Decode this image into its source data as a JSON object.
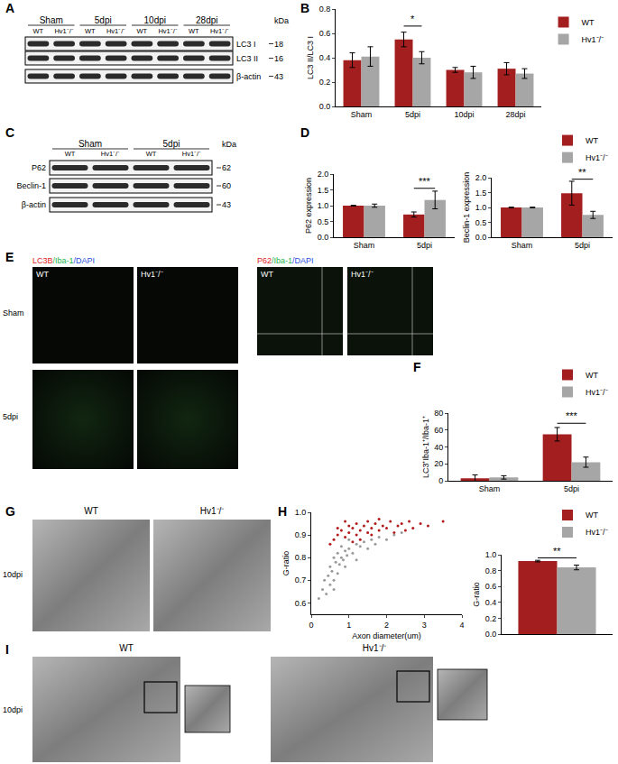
{
  "chart_data": [
    {
      "type": "bar",
      "y_label": "LC3 II/LC3 I",
      "categories": [
        "Sham",
        "5dpi",
        "10dpi",
        "28dpi"
      ],
      "series": [
        {
          "name": "WT",
          "color": "#a31f1f",
          "values": [
            0.38,
            0.55,
            0.3,
            0.31
          ],
          "errors": [
            0.06,
            0.06,
            0.02,
            0.05
          ]
        },
        {
          "name": "Hv1⁻/⁻",
          "color": "#a6a6a6",
          "values": [
            0.41,
            0.4,
            0.28,
            0.27
          ],
          "errors": [
            0.08,
            0.05,
            0.05,
            0.04
          ]
        }
      ],
      "ylim": [
        0,
        0.8
      ],
      "yticks": [
        {
          "value": 0,
          "label": "0.0"
        },
        0.2,
        0.4,
        0.6,
        0.8
      ],
      "grid": false,
      "legend": "right",
      "annotations": [
        {
          "text": "*",
          "category": "5dpi",
          "y": 0.66
        }
      ]
    },
    {
      "type": "bar",
      "y_label": "P62 expression",
      "categories": [
        "Sham",
        "5dpi"
      ],
      "series": [
        {
          "name": "WT",
          "color": "#a31f1f",
          "values": [
            1.0,
            0.72
          ],
          "errors": [
            0.01,
            0.08
          ]
        },
        {
          "name": "Hv1⁻/⁻",
          "color": "#a6a6a6",
          "values": [
            1.0,
            1.18
          ],
          "errors": [
            0.05,
            0.28
          ]
        }
      ],
      "ylim": [
        0,
        2.0
      ],
      "yticks": [
        {
          "value": 0,
          "label": "0.0"
        },
        0.5,
        {
          "value": 1,
          "label": "1.0"
        },
        1.5,
        {
          "value": 2,
          "label": "2.0"
        }
      ],
      "grid": false,
      "annotations": [
        {
          "text": "***",
          "category": "5dpi",
          "y": 1.55
        }
      ]
    },
    {
      "type": "bar",
      "y_label": "Beclin-1 expression",
      "categories": [
        "Sham",
        "5dpi"
      ],
      "series": [
        {
          "name": "WT",
          "color": "#a31f1f",
          "values": [
            1.0,
            1.48
          ],
          "errors": [
            0.01,
            0.4
          ]
        },
        {
          "name": "Hv1⁻/⁻",
          "color": "#a6a6a6",
          "values": [
            1.0,
            0.75
          ],
          "errors": [
            0.01,
            0.12
          ]
        }
      ],
      "ylim": [
        0,
        2.0
      ],
      "yticks": [
        {
          "value": 0,
          "label": "0.0"
        },
        0.5,
        {
          "value": 1,
          "label": "1.0"
        },
        1.5,
        {
          "value": 2,
          "label": "2.0"
        }
      ],
      "grid": false,
      "legend": "top right",
      "annotations": [
        {
          "text": "**",
          "category": "5dpi",
          "y": 1.95
        }
      ]
    },
    {
      "type": "bar",
      "y_label": "LC3⁺Iba-1⁺/Iba-1⁺",
      "categories": [
        "Sham",
        "5dpi"
      ],
      "series": [
        {
          "name": "WT",
          "color": "#a31f1f",
          "values": [
            3,
            55
          ],
          "errors": [
            4,
            8
          ]
        },
        {
          "name": "Hv1⁻/⁻",
          "color": "#a6a6a6",
          "values": [
            4,
            22
          ],
          "errors": [
            2,
            6
          ]
        }
      ],
      "ylim": [
        0,
        80
      ],
      "yticks": [
        0,
        20,
        40,
        60,
        80
      ],
      "grid": false,
      "legend": "top right",
      "annotations": [
        {
          "text": "***",
          "category": "5dpi",
          "y": 68
        }
      ]
    },
    {
      "type": "scatter",
      "x_label": "Axon diameter(um)",
      "y_label": "G-ratio",
      "series": [
        {
          "color": "#b31b1b",
          "x": [
            0.5,
            0.6,
            0.7,
            0.8,
            0.9,
            1.0,
            1.0,
            1.1,
            1.2,
            1.2,
            1.3,
            1.4,
            1.5,
            1.5,
            1.6,
            1.7,
            1.8,
            1.9,
            2.0,
            2.1,
            2.2,
            2.3,
            2.4,
            2.5,
            2.7,
            2.9,
            3.1,
            3.5,
            0.9,
            1.3,
            1.8,
            2.6,
            1.1,
            0.7,
            1.6
          ],
          "values": [
            0.86,
            0.88,
            0.9,
            0.92,
            0.89,
            0.91,
            0.94,
            0.93,
            0.9,
            0.95,
            0.92,
            0.94,
            0.91,
            0.96,
            0.93,
            0.95,
            0.92,
            0.94,
            0.93,
            0.96,
            0.91,
            0.94,
            0.95,
            0.92,
            0.93,
            0.95,
            0.94,
            0.96,
            0.96,
            0.88,
            0.97,
            0.96,
            0.87,
            0.93,
            0.9
          ]
        },
        {
          "color": "#9a9a9a",
          "x": [
            0.2,
            0.3,
            0.35,
            0.4,
            0.45,
            0.5,
            0.5,
            0.55,
            0.6,
            0.6,
            0.65,
            0.7,
            0.7,
            0.75,
            0.8,
            0.8,
            0.85,
            0.9,
            0.95,
            1.0,
            1.0,
            1.1,
            1.2,
            1.3,
            1.4,
            1.5,
            1.6,
            1.7,
            1.8,
            2.0,
            2.2,
            2.4,
            0.9,
            1.2,
            0.6
          ],
          "values": [
            0.62,
            0.66,
            0.7,
            0.64,
            0.72,
            0.68,
            0.76,
            0.74,
            0.7,
            0.8,
            0.78,
            0.73,
            0.82,
            0.77,
            0.8,
            0.85,
            0.79,
            0.83,
            0.81,
            0.84,
            0.88,
            0.82,
            0.86,
            0.85,
            0.87,
            0.84,
            0.88,
            0.86,
            0.89,
            0.88,
            0.9,
            0.91,
            0.76,
            0.79,
            0.66
          ]
        }
      ],
      "xlim": [
        0,
        4
      ],
      "xticks": [
        0,
        1,
        2,
        3,
        4
      ],
      "ylim": [
        0.55,
        1.0
      ],
      "yticks": [
        0.6,
        0.7,
        0.8,
        0.9,
        {
          "value": 1,
          "label": "1.0"
        }
      ],
      "grid": false,
      "marker": "circle"
    },
    {
      "type": "bar",
      "y_label": "G-ratio",
      "categories": [
        null
      ],
      "series": [
        {
          "name": "WT",
          "color": "#a31f1f",
          "values": [
            0.92
          ],
          "errors": [
            0.01
          ]
        },
        {
          "name": "Hv1⁻/⁻",
          "color": "#a6a6a6",
          "values": [
            0.84
          ],
          "errors": [
            0.03
          ]
        }
      ],
      "ylim": [
        0,
        1.0
      ],
      "yticks": [
        {
          "value": 0,
          "label": "0.0"
        },
        0.2,
        0.4,
        0.6,
        0.8,
        {
          "value": 1,
          "label": "1.0"
        }
      ],
      "grid": false,
      "legend": "top right",
      "tick_labels": "y",
      "annotations": [
        {
          "text": "**",
          "category": null,
          "y": 0.96
        }
      ]
    }
  ],
  "figure": {
    "panel_labels": [
      "A",
      "B",
      "C",
      "D",
      "E",
      "F",
      "G",
      "H",
      "I"
    ],
    "blot_A": {
      "groups": [
        "Sham",
        "5dpi",
        "10dpi",
        "28dpi"
      ],
      "lanes": [
        "WT",
        "Hv1⁻/⁻"
      ],
      "unit": "kDa",
      "rows": [
        {
          "label": "LC3 I",
          "kda": 18
        },
        {
          "label": "LC3 II",
          "kda": 16
        },
        {
          "label": "β-actin",
          "kda": 43
        }
      ]
    },
    "blot_C": {
      "groups": [
        "Sham",
        "5dpi"
      ],
      "lanes": [
        "WT",
        "Hv1⁻/⁻"
      ],
      "unit": "kDa",
      "rows": [
        {
          "label": "P62",
          "kda": 62
        },
        {
          "label": "Beclin-1",
          "kda": 60
        },
        {
          "label": "β-actin",
          "kda": 43
        }
      ]
    },
    "panel_E": {
      "stain_left": [
        "LC3B",
        "/Iba-1",
        "/DAPI"
      ],
      "stain_right": [
        "P62",
        "/Iba-1",
        "/DAPI"
      ],
      "columns": [
        "WT",
        "Hv1⁻/⁻"
      ],
      "rows": [
        "Sham",
        "5dpi"
      ]
    },
    "panel_G": {
      "columns": [
        "WT",
        "Hv1⁻/⁻"
      ],
      "row": "10dpi"
    },
    "panel_I": {
      "columns": [
        "WT",
        "Hv1⁻/⁻"
      ],
      "row": "10dpi"
    }
  }
}
